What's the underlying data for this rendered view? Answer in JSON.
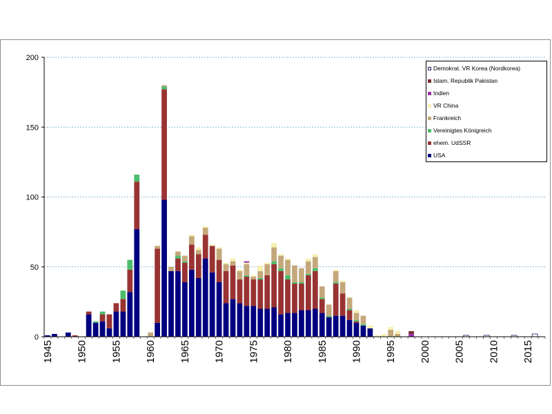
{
  "chart_data": {
    "type": "bar",
    "stacked": true,
    "xlim": [
      1945,
      2017
    ],
    "ylim": [
      0,
      200
    ],
    "yticks": [
      0,
      50,
      100,
      150,
      200
    ],
    "xticks": [
      1945,
      1950,
      1955,
      1960,
      1965,
      1970,
      1975,
      1980,
      1985,
      1990,
      1995,
      2000,
      2005,
      2010,
      2015
    ],
    "grid": "horizontal",
    "legend_position": "top-right",
    "x": [
      1945,
      1946,
      1947,
      1948,
      1949,
      1950,
      1951,
      1952,
      1953,
      1954,
      1955,
      1956,
      1957,
      1958,
      1959,
      1960,
      1961,
      1962,
      1963,
      1964,
      1965,
      1966,
      1967,
      1968,
      1969,
      1970,
      1971,
      1972,
      1973,
      1974,
      1975,
      1976,
      1977,
      1978,
      1979,
      1980,
      1981,
      1982,
      1983,
      1984,
      1985,
      1986,
      1987,
      1988,
      1989,
      1990,
      1991,
      1992,
      1993,
      1994,
      1995,
      1996,
      1997,
      1998,
      1999,
      2000,
      2001,
      2002,
      2003,
      2004,
      2005,
      2006,
      2007,
      2008,
      2009,
      2010,
      2011,
      2012,
      2013,
      2014,
      2015,
      2016,
      2017
    ],
    "series": [
      {
        "name": "USA",
        "color": "#000080",
        "values": [
          1,
          2,
          0,
          3,
          0,
          0,
          16,
          10,
          11,
          6,
          18,
          18,
          32,
          77,
          0,
          0,
          10,
          98,
          47,
          47,
          39,
          48,
          42,
          56,
          46,
          39,
          24,
          27,
          24,
          22,
          22,
          20,
          20,
          21,
          16,
          17,
          17,
          19,
          19,
          20,
          17,
          14,
          15,
          15,
          12,
          10,
          8,
          6,
          0,
          0,
          0,
          0,
          0,
          0,
          0,
          0,
          0,
          0,
          0,
          0,
          0,
          0,
          0,
          0,
          0,
          0,
          0,
          0,
          0,
          0,
          0,
          0,
          0
        ]
      },
      {
        "name": "ehem. UdSSR",
        "color": "#993333",
        "values": [
          0,
          0,
          0,
          0,
          1,
          0,
          2,
          0,
          5,
          10,
          6,
          9,
          16,
          34,
          0,
          0,
          53,
          79,
          0,
          9,
          14,
          18,
          17,
          17,
          19,
          16,
          23,
          24,
          17,
          21,
          19,
          21,
          24,
          31,
          31,
          24,
          21,
          19,
          25,
          27,
          10,
          0,
          23,
          16,
          7,
          1,
          0,
          0,
          0,
          0,
          0,
          0,
          0,
          0,
          0,
          0,
          0,
          0,
          0,
          0,
          0,
          0,
          0,
          0,
          0,
          0,
          0,
          0,
          0,
          0,
          0,
          0,
          0
        ]
      },
      {
        "name": "Vereinigtes Königreich",
        "color": "#4dbd6b",
        "values": [
          0,
          0,
          0,
          0,
          0,
          0,
          0,
          1,
          2,
          0,
          0,
          6,
          7,
          5,
          0,
          0,
          0,
          2,
          0,
          2,
          1,
          0,
          0,
          0,
          0,
          0,
          0,
          0,
          0,
          1,
          0,
          1,
          0,
          2,
          2,
          3,
          1,
          1,
          1,
          2,
          1,
          1,
          1,
          0,
          1,
          1,
          1,
          0,
          0,
          0,
          0,
          0,
          0,
          0,
          0,
          0,
          0,
          0,
          0,
          0,
          0,
          0,
          0,
          0,
          0,
          0,
          0,
          0,
          0,
          0,
          0,
          0,
          0
        ]
      },
      {
        "name": "Frankreich",
        "color": "#c4a87b",
        "values": [
          0,
          0,
          0,
          0,
          0,
          0,
          0,
          0,
          0,
          0,
          0,
          0,
          0,
          0,
          0,
          3,
          2,
          1,
          3,
          3,
          4,
          6,
          3,
          5,
          0,
          8,
          5,
          3,
          6,
          8,
          2,
          5,
          8,
          10,
          9,
          11,
          12,
          10,
          9,
          8,
          8,
          8,
          8,
          8,
          8,
          5,
          6,
          0,
          0,
          0,
          5,
          2,
          0,
          0,
          0,
          0,
          0,
          0,
          0,
          0,
          0,
          0,
          0,
          0,
          0,
          0,
          0,
          0,
          0,
          0,
          0,
          0,
          0
        ]
      },
      {
        "name": "VR China",
        "color": "#f5f0b0",
        "values": [
          0,
          0,
          0,
          0,
          0,
          0,
          0,
          0,
          0,
          0,
          0,
          0,
          0,
          0,
          0,
          0,
          0,
          0,
          0,
          0,
          0,
          1,
          2,
          1,
          1,
          1,
          1,
          2,
          1,
          1,
          1,
          4,
          1,
          3,
          1,
          1,
          0,
          0,
          2,
          2,
          0,
          0,
          1,
          1,
          0,
          2,
          0,
          2,
          1,
          2,
          2,
          2,
          0,
          0,
          0,
          0,
          0,
          0,
          0,
          0,
          0,
          0,
          0,
          0,
          0,
          0,
          0,
          0,
          0,
          0,
          0,
          0,
          0
        ]
      },
      {
        "name": "Indien",
        "color": "#9932a8",
        "values": [
          0,
          0,
          0,
          0,
          0,
          0,
          0,
          0,
          0,
          0,
          0,
          0,
          0,
          0,
          0,
          0,
          0,
          0,
          0,
          0,
          0,
          0,
          0,
          0,
          0,
          0,
          0,
          0,
          0,
          1,
          0,
          0,
          0,
          0,
          0,
          0,
          0,
          0,
          0,
          0,
          0,
          0,
          0,
          0,
          0,
          0,
          0,
          0,
          0,
          0,
          0,
          0,
          0,
          2,
          0,
          0,
          0,
          0,
          0,
          0,
          0,
          0,
          0,
          0,
          0,
          0,
          0,
          0,
          0,
          0,
          0,
          0,
          0
        ]
      },
      {
        "name": "Islam. Republik Pakistan",
        "color": "#7a2c33",
        "values": [
          0,
          0,
          0,
          0,
          0,
          0,
          0,
          0,
          0,
          0,
          0,
          0,
          0,
          0,
          0,
          0,
          0,
          0,
          0,
          0,
          0,
          0,
          0,
          0,
          0,
          0,
          0,
          0,
          0,
          0,
          0,
          0,
          0,
          0,
          0,
          0,
          0,
          0,
          0,
          0,
          0,
          0,
          0,
          0,
          0,
          0,
          0,
          0,
          0,
          0,
          0,
          0,
          0,
          2,
          0,
          0,
          0,
          0,
          0,
          0,
          0,
          0,
          0,
          0,
          0,
          0,
          0,
          0,
          0,
          0,
          0,
          0,
          0
        ]
      },
      {
        "name": "Demokrat. VR Korea (Nordkorea)",
        "color": "#ffffff",
        "stroke": "#1a1a5e",
        "values": [
          0,
          0,
          0,
          0,
          0,
          0,
          0,
          0,
          0,
          0,
          0,
          0,
          0,
          0,
          0,
          0,
          0,
          0,
          0,
          0,
          0,
          0,
          0,
          0,
          0,
          0,
          0,
          0,
          0,
          0,
          0,
          0,
          0,
          0,
          0,
          0,
          0,
          0,
          0,
          0,
          0,
          0,
          0,
          0,
          0,
          0,
          0,
          0,
          0,
          0,
          0,
          0,
          0,
          0,
          0,
          0,
          0,
          0,
          0,
          0,
          0,
          1,
          0,
          0,
          1,
          0,
          0,
          0,
          1,
          0,
          0,
          2,
          0
        ]
      }
    ]
  }
}
